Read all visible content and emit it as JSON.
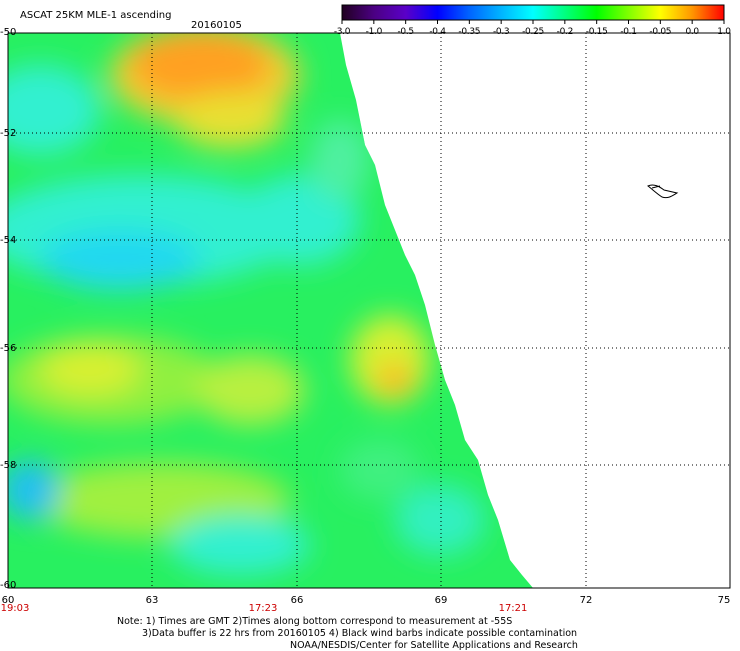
{
  "title": "ASCAT 25KM MLE-1 ascending",
  "date": "20160105",
  "colorbar": {
    "labels": [
      "-3.0",
      "-1.0",
      "-0.5",
      "-0.4",
      "-0.35",
      "-0.3",
      "-0.25",
      "-0.2",
      "-0.15",
      "-0.1",
      "-0.05",
      "0.0",
      "1.0"
    ],
    "colors": [
      "#200020",
      "#4b0082",
      "#5a00c8",
      "#0000ff",
      "#0064ff",
      "#00b4ff",
      "#00ffff",
      "#00ff80",
      "#00ff00",
      "#80ff00",
      "#ffff00",
      "#ff9600",
      "#ff0000"
    ]
  },
  "axes": {
    "lat_labels": [
      "-50",
      "-52",
      "-54",
      "-56",
      "-58",
      "-60"
    ],
    "lon_labels": [
      "60",
      "63",
      "66",
      "69",
      "72",
      "75"
    ]
  },
  "times": [
    "19:03",
    "17:23",
    "17:21"
  ],
  "notes": [
    "Note: 1) Times are GMT 2)Times along bottom correspond to measurement at -55S",
    "3)Data buffer is 22 hrs from 20160105 4) Black wind barbs indicate possible contamination",
    "NOAA/NESDIS/Center for Satellite Applications and Research"
  ]
}
